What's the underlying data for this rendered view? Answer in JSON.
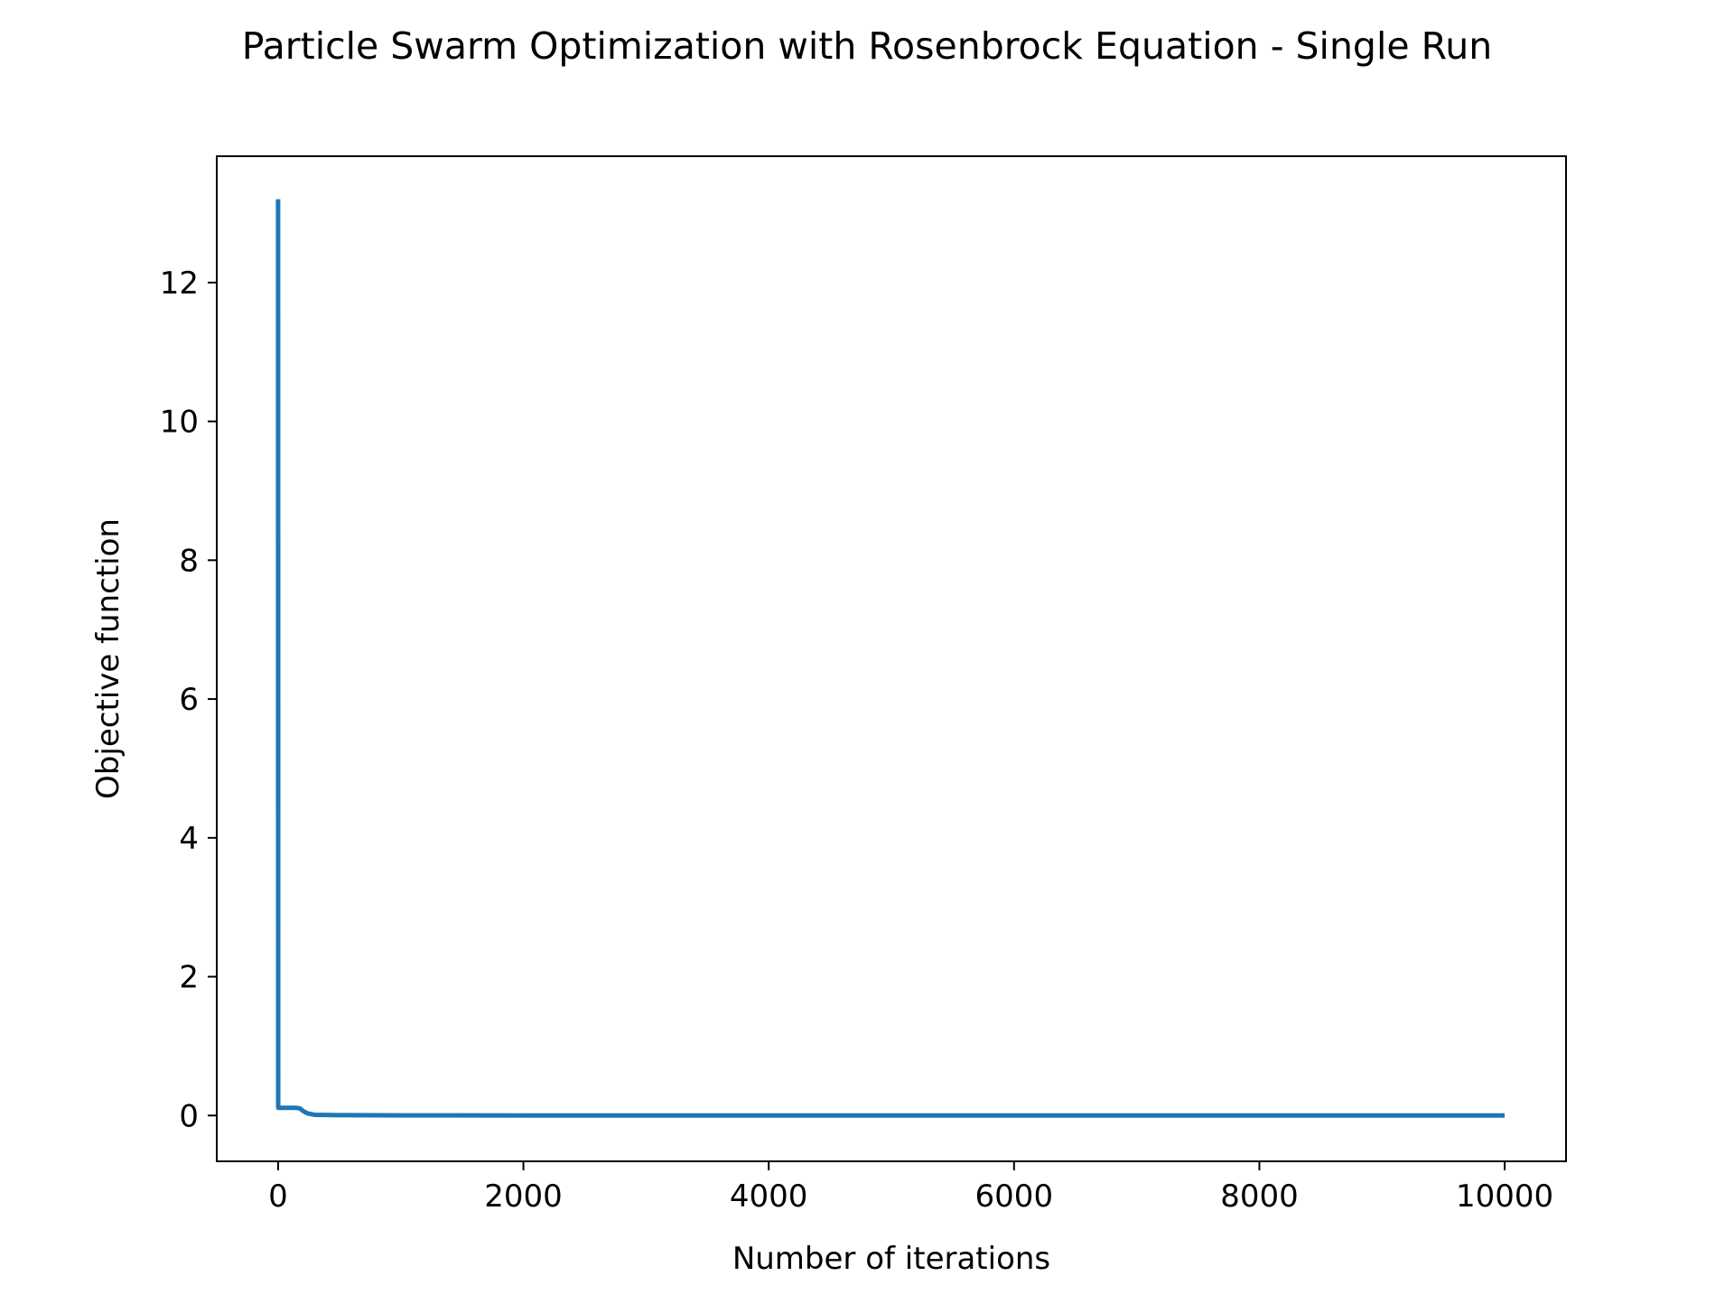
{
  "chart_data": {
    "type": "line",
    "title": "Particle Swarm Optimization with Rosenbrock Equation - Single Run",
    "xlabel": "Number of iterations",
    "ylabel": "Objective function",
    "xlim": [
      -500,
      10500
    ],
    "ylim": [
      -0.66,
      13.82
    ],
    "xticks": [
      0,
      2000,
      4000,
      6000,
      8000,
      10000
    ],
    "xtick_labels": [
      "0",
      "2000",
      "4000",
      "6000",
      "8000",
      "10000"
    ],
    "yticks": [
      0,
      2,
      4,
      6,
      8,
      10,
      12
    ],
    "ytick_labels": [
      "0",
      "2",
      "4",
      "6",
      "8",
      "10",
      "12"
    ],
    "grid": false,
    "legend": false,
    "series": [
      {
        "color": "#1f77b4",
        "x": [
          0,
          1,
          2,
          150,
          180,
          200,
          240,
          300,
          500,
          1000,
          2000,
          4000,
          6000,
          8000,
          10000
        ],
        "y": [
          13.2,
          0.12,
          0.11,
          0.11,
          0.1,
          0.07,
          0.03,
          0.01,
          0.005,
          0.002,
          0.001,
          0.0,
          0.0,
          0.0,
          0.0
        ]
      }
    ]
  }
}
